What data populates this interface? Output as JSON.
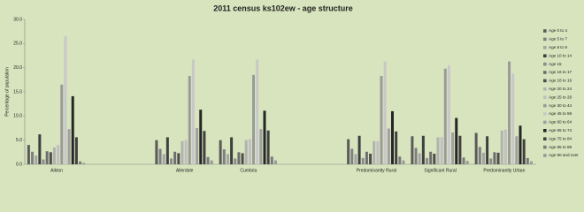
{
  "chart_data": {
    "type": "bar",
    "title": "2011 census ks102ew - age structure",
    "y_label": "Percentage of population",
    "categories": [
      "Aikton",
      null,
      "Allerdale",
      "Cumbria",
      null,
      "Predominantly Rural",
      "Significant Rural",
      "Predominantly Urban"
    ],
    "ylim": [
      0,
      30
    ],
    "yticks": [
      {
        "value": 0,
        "label": "0.0"
      },
      {
        "value": 5,
        "label": "5.0"
      },
      {
        "value": 10,
        "label": "10.0"
      },
      {
        "value": 15,
        "label": "15.0"
      },
      {
        "value": 20,
        "label": "20.0"
      },
      {
        "value": 25,
        "label": "25.0"
      },
      {
        "value": 30,
        "label": "30.0"
      }
    ],
    "grid": false,
    "legend": "right",
    "series": [
      {
        "name": "Age 0 to 4",
        "color": "#5a5a5a",
        "values": [
          4.0,
          null,
          5.0,
          5.0,
          null,
          5.2,
          5.8,
          6.5
        ]
      },
      {
        "name": "Age 5 to 7",
        "color": "#7f7f7f",
        "values": [
          2.6,
          null,
          3.2,
          3.1,
          null,
          3.2,
          3.4,
          3.6
        ]
      },
      {
        "name": "Age 8 to 9",
        "color": "#a5a5a5",
        "values": [
          1.8,
          null,
          2.1,
          2.1,
          null,
          2.1,
          2.3,
          2.4
        ]
      },
      {
        "name": "Age 10 to 14",
        "color": "#3f3f3f",
        "values": [
          6.2,
          null,
          5.6,
          5.6,
          null,
          5.9,
          5.9,
          5.8
        ]
      },
      {
        "name": "Age 15",
        "color": "#8c8c8c",
        "values": [
          1.0,
          null,
          1.2,
          1.2,
          null,
          1.3,
          1.3,
          1.2
        ]
      },
      {
        "name": "Age 16 to 17",
        "color": "#6e6e6e",
        "values": [
          2.7,
          null,
          2.6,
          2.5,
          null,
          2.6,
          2.6,
          2.5
        ]
      },
      {
        "name": "Age 18 to 19",
        "color": "#4d4d4d",
        "values": [
          2.5,
          null,
          2.3,
          2.3,
          null,
          2.2,
          2.2,
          2.4
        ]
      },
      {
        "name": "Age 20 to 24",
        "color": "#b2b2b2",
        "values": [
          3.5,
          null,
          4.8,
          5.0,
          null,
          4.8,
          5.6,
          7.0
        ]
      },
      {
        "name": "Age 25 to 29",
        "color": "#bfbfbf",
        "values": [
          4.0,
          null,
          5.0,
          5.2,
          null,
          4.8,
          5.6,
          7.2
        ]
      },
      {
        "name": "Age 30 to 44",
        "color": "#9a9a9a",
        "values": [
          16.5,
          null,
          18.3,
          18.5,
          null,
          18.3,
          19.8,
          21.3
        ]
      },
      {
        "name": "Age 45 to 59",
        "color": "#c8c8c8",
        "values": [
          26.5,
          null,
          21.7,
          21.7,
          null,
          21.3,
          20.5,
          18.8
        ]
      },
      {
        "name": "Age 60 to 64",
        "color": "#a0a0a0",
        "values": [
          7.3,
          null,
          7.5,
          7.3,
          null,
          7.4,
          6.6,
          5.8
        ]
      },
      {
        "name": "Age 65 to 74",
        "color": "#262626",
        "values": [
          14.1,
          null,
          11.3,
          11.1,
          null,
          11.0,
          9.6,
          8.0
        ]
      },
      {
        "name": "Age 75 to 84",
        "color": "#404040",
        "values": [
          5.6,
          null,
          6.9,
          7.0,
          null,
          6.8,
          5.9,
          5.2
        ]
      },
      {
        "name": "Age 85 to 89",
        "color": "#7a7a7a",
        "values": [
          0.6,
          null,
          1.5,
          1.6,
          null,
          1.6,
          1.4,
          1.3
        ]
      },
      {
        "name": "Age 90 and over",
        "color": "#999999",
        "values": [
          0.3,
          null,
          0.8,
          0.8,
          null,
          0.8,
          0.7,
          0.6
        ]
      }
    ]
  }
}
